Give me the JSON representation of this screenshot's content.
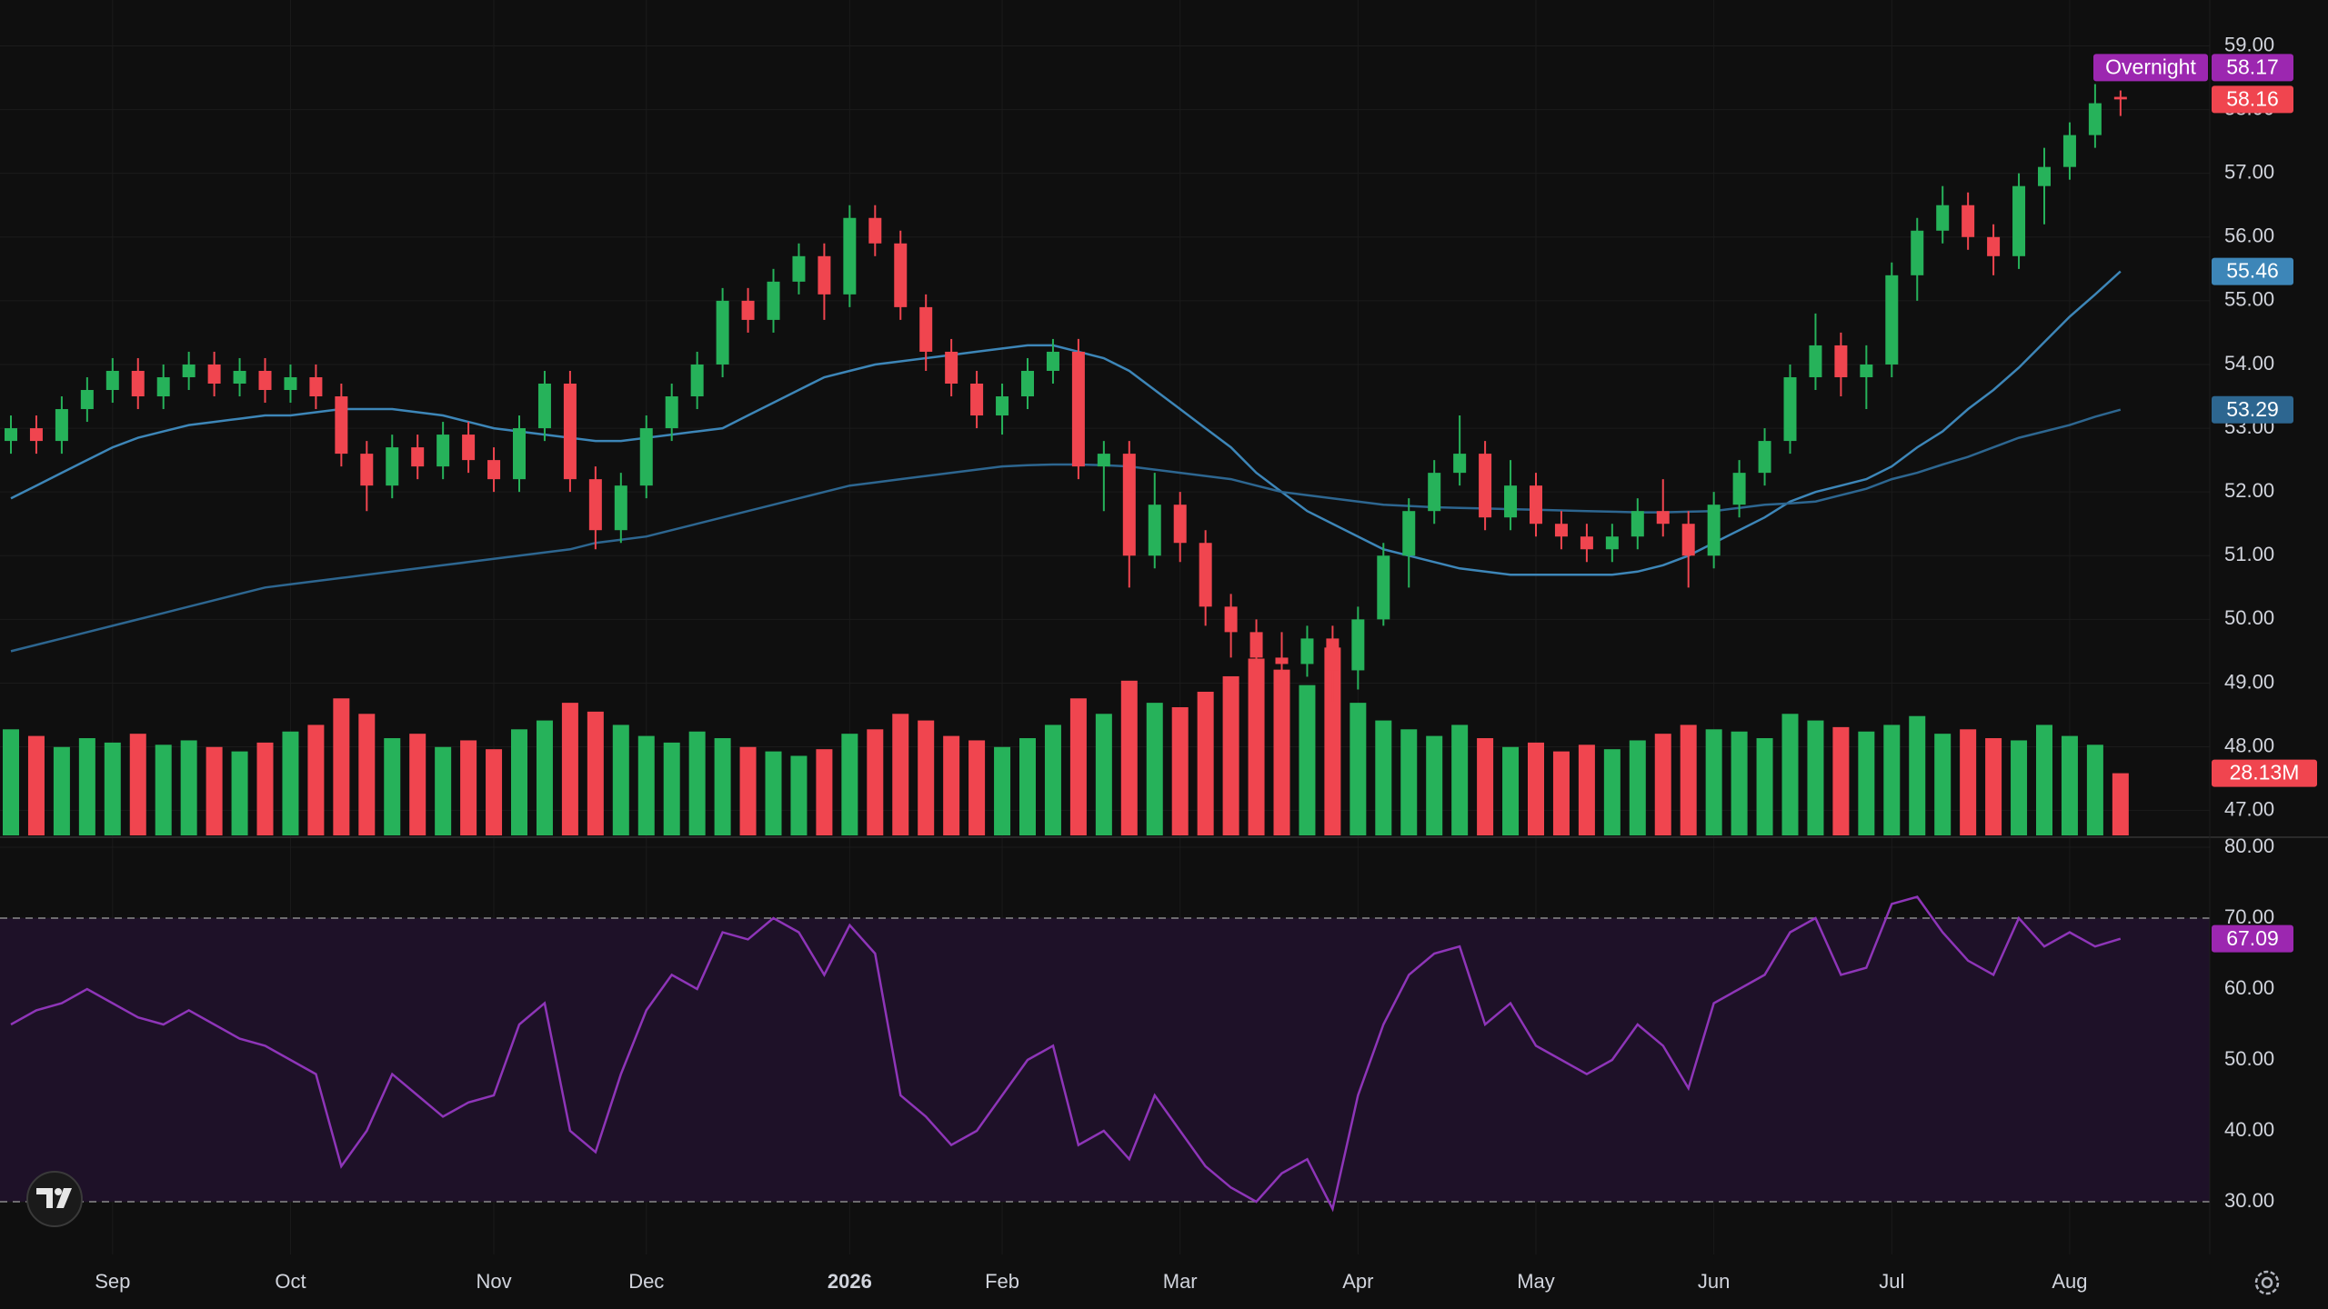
{
  "chart_data": [
    {
      "type": "candlestick",
      "categories": [
        null,
        null,
        null,
        null,
        "Sep",
        null,
        null,
        null,
        null,
        null,
        null,
        "Oct",
        null,
        null,
        null,
        null,
        null,
        null,
        null,
        "Nov",
        null,
        null,
        null,
        null,
        null,
        "Dec",
        null,
        null,
        null,
        null,
        null,
        null,
        null,
        "2026",
        null,
        null,
        null,
        null,
        null,
        "Feb",
        null,
        null,
        null,
        null,
        null,
        null,
        "Mar",
        null,
        null,
        null,
        null,
        null,
        null,
        "Apr",
        null,
        null,
        null,
        null,
        null,
        null,
        "May",
        null,
        null,
        null,
        null,
        null,
        null,
        "Jun",
        null,
        null,
        null,
        null,
        null,
        null,
        "Jul",
        null,
        null,
        null,
        null,
        null,
        null,
        "Aug",
        null,
        null
      ],
      "open": [
        52.8,
        53.0,
        52.8,
        53.3,
        53.6,
        53.9,
        53.5,
        53.8,
        54.0,
        53.7,
        53.9,
        53.6,
        53.8,
        53.5,
        52.6,
        52.1,
        52.7,
        52.4,
        52.9,
        52.5,
        52.2,
        53.0,
        53.7,
        52.2,
        51.4,
        52.1,
        53.0,
        53.5,
        54.0,
        55.0,
        54.7,
        55.3,
        55.7,
        55.1,
        56.3,
        55.9,
        54.9,
        54.2,
        53.7,
        53.2,
        53.5,
        53.9,
        54.2,
        52.4,
        52.6,
        51.0,
        51.8,
        51.2,
        50.2,
        49.8,
        49.4,
        49.3,
        49.7,
        49.2,
        50.0,
        51.0,
        51.7,
        52.3,
        52.6,
        51.6,
        52.1,
        51.5,
        51.3,
        51.1,
        51.3,
        51.7,
        51.5,
        51.0,
        51.8,
        52.3,
        52.8,
        53.8,
        54.3,
        53.8,
        54.0,
        55.4,
        56.1,
        56.5,
        56.0,
        55.7,
        56.8,
        57.1,
        57.6,
        58.2
      ],
      "high": [
        53.2,
        53.2,
        53.5,
        53.8,
        54.1,
        54.1,
        54.0,
        54.2,
        54.2,
        54.1,
        54.1,
        54.0,
        54.0,
        53.7,
        52.8,
        52.9,
        52.9,
        53.1,
        53.1,
        52.7,
        53.2,
        53.9,
        53.9,
        52.4,
        52.3,
        53.2,
        53.7,
        54.2,
        55.2,
        55.2,
        55.5,
        55.9,
        55.9,
        56.5,
        56.5,
        56.1,
        55.1,
        54.4,
        53.9,
        53.7,
        54.1,
        54.4,
        54.4,
        52.8,
        52.8,
        52.3,
        52.0,
        51.4,
        50.4,
        50.0,
        49.8,
        49.9,
        49.9,
        50.2,
        51.2,
        51.9,
        52.5,
        53.2,
        52.8,
        52.5,
        52.3,
        51.7,
        51.5,
        51.5,
        51.9,
        52.2,
        51.7,
        52.0,
        52.5,
        53.0,
        54.0,
        54.8,
        54.5,
        54.3,
        55.6,
        56.3,
        56.8,
        56.7,
        56.2,
        57.0,
        57.4,
        57.8,
        58.4,
        58.3
      ],
      "low": [
        52.6,
        52.6,
        52.6,
        53.1,
        53.4,
        53.3,
        53.3,
        53.6,
        53.5,
        53.5,
        53.4,
        53.4,
        53.3,
        52.4,
        51.7,
        51.9,
        52.2,
        52.2,
        52.3,
        52.0,
        52.0,
        52.8,
        52.0,
        51.1,
        51.2,
        51.9,
        52.8,
        53.3,
        53.8,
        54.5,
        54.5,
        55.1,
        54.7,
        54.9,
        55.7,
        54.7,
        53.9,
        53.5,
        53.0,
        52.9,
        53.3,
        53.7,
        52.2,
        51.7,
        50.5,
        50.8,
        50.9,
        49.9,
        49.4,
        49.0,
        48.9,
        49.1,
        48.7,
        48.9,
        49.9,
        50.5,
        51.5,
        52.1,
        51.4,
        51.4,
        51.3,
        51.1,
        50.9,
        50.9,
        51.1,
        51.3,
        50.5,
        50.8,
        51.6,
        52.1,
        52.6,
        53.6,
        53.5,
        53.3,
        53.8,
        55.0,
        55.9,
        55.8,
        55.4,
        55.5,
        56.2,
        56.9,
        57.4,
        57.9
      ],
      "close": [
        53.0,
        52.8,
        53.3,
        53.6,
        53.9,
        53.5,
        53.8,
        54.0,
        53.7,
        53.9,
        53.6,
        53.8,
        53.5,
        52.6,
        52.1,
        52.7,
        52.4,
        52.9,
        52.5,
        52.2,
        53.0,
        53.7,
        52.2,
        51.4,
        52.1,
        53.0,
        53.5,
        54.0,
        55.0,
        54.7,
        55.3,
        55.7,
        55.1,
        56.3,
        55.9,
        54.9,
        54.2,
        53.7,
        53.2,
        53.5,
        53.9,
        54.2,
        52.4,
        52.6,
        51.0,
        51.8,
        51.2,
        50.2,
        49.8,
        49.4,
        49.3,
        49.7,
        49.2,
        50.0,
        51.0,
        51.7,
        52.3,
        52.6,
        51.6,
        52.1,
        51.5,
        51.3,
        51.1,
        51.3,
        51.7,
        51.5,
        51.0,
        51.8,
        52.3,
        52.8,
        53.8,
        54.3,
        53.8,
        54.0,
        55.4,
        56.1,
        56.5,
        56.0,
        55.7,
        56.8,
        57.1,
        57.6,
        58.1,
        58.16
      ],
      "up_color": "#26b25a",
      "down_color": "#f0454f",
      "ylim": [
        46.61,
        59.72
      ],
      "yticks": [
        {
          "value": 47,
          "label": "47.00"
        },
        {
          "value": 48,
          "label": "48.00"
        },
        {
          "value": 49,
          "label": "49.00"
        },
        {
          "value": 50,
          "label": "50.00"
        },
        {
          "value": 51,
          "label": "51.00"
        },
        {
          "value": 52,
          "label": "52.00"
        },
        {
          "value": 53,
          "label": "53.00"
        },
        {
          "value": 54,
          "label": "54.00"
        },
        {
          "value": 55,
          "label": "55.00"
        },
        {
          "value": 56,
          "label": "56.00"
        },
        {
          "value": 57,
          "label": "57.00"
        },
        {
          "value": 58,
          "label": "58.00"
        },
        {
          "value": 59,
          "label": "59.00"
        }
      ],
      "grid": true,
      "series": [
        {
          "color": "#3d86b8",
          "values": [
            51.9,
            52.1,
            52.3,
            52.5,
            52.7,
            52.85,
            52.95,
            53.05,
            53.1,
            53.15,
            53.2,
            53.2,
            53.25,
            53.3,
            53.3,
            53.3,
            53.25,
            53.2,
            53.1,
            53.0,
            52.95,
            52.9,
            52.85,
            52.8,
            52.8,
            52.85,
            52.9,
            52.95,
            53.0,
            53.2,
            53.4,
            53.6,
            53.8,
            53.9,
            54.0,
            54.05,
            54.1,
            54.15,
            54.2,
            54.25,
            54.3,
            54.3,
            54.2,
            54.1,
            53.9,
            53.6,
            53.3,
            53.0,
            52.7,
            52.3,
            52.0,
            51.7,
            51.5,
            51.3,
            51.1,
            51.0,
            50.9,
            50.8,
            50.75,
            50.7,
            50.7,
            50.7,
            50.7,
            50.7,
            50.75,
            50.85,
            51.0,
            51.2,
            51.4,
            51.6,
            51.85,
            52.0,
            52.1,
            52.2,
            52.4,
            52.7,
            52.95,
            53.3,
            53.6,
            53.95,
            54.35,
            54.75,
            55.1,
            55.46
          ]
        },
        {
          "color": "#2d6690",
          "values": [
            49.5,
            49.6,
            49.7,
            49.8,
            49.9,
            50.0,
            50.1,
            50.2,
            50.3,
            50.4,
            50.5,
            50.55,
            50.6,
            50.65,
            50.7,
            50.75,
            50.8,
            50.85,
            50.9,
            50.95,
            51.0,
            51.05,
            51.1,
            51.2,
            51.25,
            51.3,
            51.4,
            51.5,
            51.6,
            51.7,
            51.8,
            51.9,
            52.0,
            52.1,
            52.15,
            52.2,
            52.25,
            52.3,
            52.35,
            52.4,
            52.42,
            52.43,
            52.43,
            52.42,
            52.4,
            52.35,
            52.3,
            52.25,
            52.2,
            52.1,
            52.0,
            51.95,
            51.9,
            51.85,
            51.8,
            51.78,
            51.76,
            51.75,
            51.74,
            51.73,
            51.72,
            51.71,
            51.7,
            51.69,
            51.68,
            51.68,
            51.69,
            51.7,
            51.75,
            51.8,
            51.82,
            51.85,
            51.95,
            52.05,
            52.2,
            52.3,
            52.43,
            52.55,
            52.7,
            52.85,
            52.95,
            53.05,
            53.18,
            53.29
          ]
        }
      ],
      "volume": {
        "axis": "y2",
        "values": [
          48,
          45,
          40,
          44,
          42,
          46,
          41,
          43,
          40,
          38,
          42,
          47,
          50,
          62,
          55,
          44,
          46,
          40,
          43,
          39,
          48,
          52,
          60,
          56,
          50,
          45,
          42,
          47,
          44,
          40,
          38,
          36,
          39,
          46,
          48,
          55,
          52,
          45,
          43,
          40,
          44,
          50,
          62,
          55,
          70,
          60,
          58,
          65,
          72,
          80,
          75,
          68,
          85,
          60,
          52,
          48,
          45,
          50,
          44,
          40,
          42,
          38,
          41,
          39,
          43,
          46,
          50,
          48,
          47,
          44,
          55,
          52,
          49,
          47,
          50,
          54,
          46,
          48,
          44,
          43,
          50,
          45,
          41,
          28.13
        ],
        "value_labels": [
          null,
          null,
          null,
          null,
          null,
          null,
          null,
          null,
          null,
          null,
          null,
          null,
          null,
          null,
          null,
          null,
          null,
          null,
          null,
          null,
          null,
          null,
          null,
          null,
          null,
          null,
          null,
          null,
          null,
          null,
          null,
          null,
          null,
          null,
          null,
          null,
          null,
          null,
          null,
          null,
          null,
          null,
          null,
          null,
          null,
          null,
          null,
          null,
          null,
          null,
          null,
          null,
          null,
          null,
          null,
          null,
          null,
          null,
          null,
          null,
          null,
          null,
          null,
          null,
          null,
          null,
          null,
          null,
          null,
          null,
          null,
          null,
          null,
          null,
          null,
          null,
          null,
          null,
          null,
          null,
          null,
          null,
          null,
          "28.13M"
        ]
      },
      "y2lim": [
        0,
        378
      ],
      "overnight": {
        "label": "Overnight",
        "value": 58.17,
        "color": "#9c27b0"
      }
    },
    {
      "type": "line",
      "color": "#8e35b8",
      "values": [
        55,
        57,
        58,
        60,
        58,
        56,
        55,
        57,
        55,
        53,
        52,
        50,
        48,
        35,
        40,
        48,
        45,
        42,
        44,
        45,
        55,
        58,
        40,
        37,
        48,
        57,
        62,
        60,
        68,
        67,
        70,
        68,
        62,
        69,
        65,
        45,
        42,
        38,
        40,
        45,
        50,
        52,
        38,
        40,
        36,
        45,
        40,
        35,
        32,
        30,
        34,
        36,
        29,
        45,
        55,
        62,
        65,
        66,
        55,
        58,
        52,
        50,
        48,
        50,
        55,
        52,
        46,
        58,
        60,
        62,
        68,
        70,
        62,
        63,
        72,
        73,
        68,
        64,
        62,
        70,
        66,
        68,
        66,
        67.09
      ],
      "ylim": [
        22.56,
        81.28
      ],
      "yticks": [
        {
          "value": 30,
          "label": "30.00"
        },
        {
          "value": 40,
          "label": "40.00"
        },
        {
          "value": 50,
          "label": "50.00"
        },
        {
          "value": 60,
          "label": "60.00"
        },
        {
          "value": 70,
          "label": "70.00"
        },
        {
          "value": 80,
          "label": "80.00"
        }
      ],
      "band": [
        30,
        70
      ],
      "grid": true
    }
  ]
}
